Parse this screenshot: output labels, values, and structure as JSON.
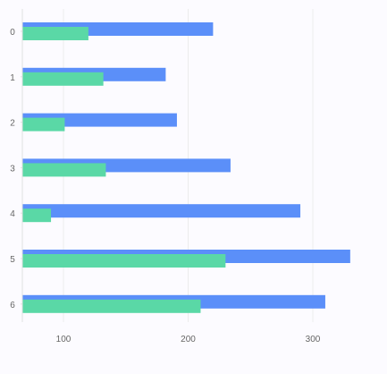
{
  "chart_data": {
    "type": "bar",
    "orientation": "horizontal",
    "categories": [
      "0",
      "1",
      "2",
      "3",
      "4",
      "5",
      "6"
    ],
    "series": [
      {
        "values": [
          220,
          182,
          191,
          234,
          290,
          330,
          310
        ],
        "color": "#5b8ff9"
      },
      {
        "values": [
          120,
          132,
          101,
          134,
          90,
          230,
          210
        ],
        "color": "#5ad8a6"
      }
    ],
    "x_ticks": [
      100,
      200,
      300
    ],
    "xlim": [
      66,
      352
    ],
    "grid": true,
    "axis_color": "#e0e0e0",
    "grid_color": "#ececec",
    "tick_color": "#666666"
  }
}
